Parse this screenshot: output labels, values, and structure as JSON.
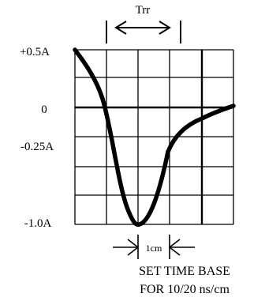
{
  "trr_label": "Trr",
  "y_labels": [
    "+0.5A",
    "0",
    "-0.25A",
    "-1.0A"
  ],
  "scale_label": "1cm",
  "caption_line1": "SET TIME BASE",
  "caption_line2": "FOR 10/20 ns/cm",
  "colors": {
    "ink": "#000000",
    "background": "#ffffff"
  }
}
